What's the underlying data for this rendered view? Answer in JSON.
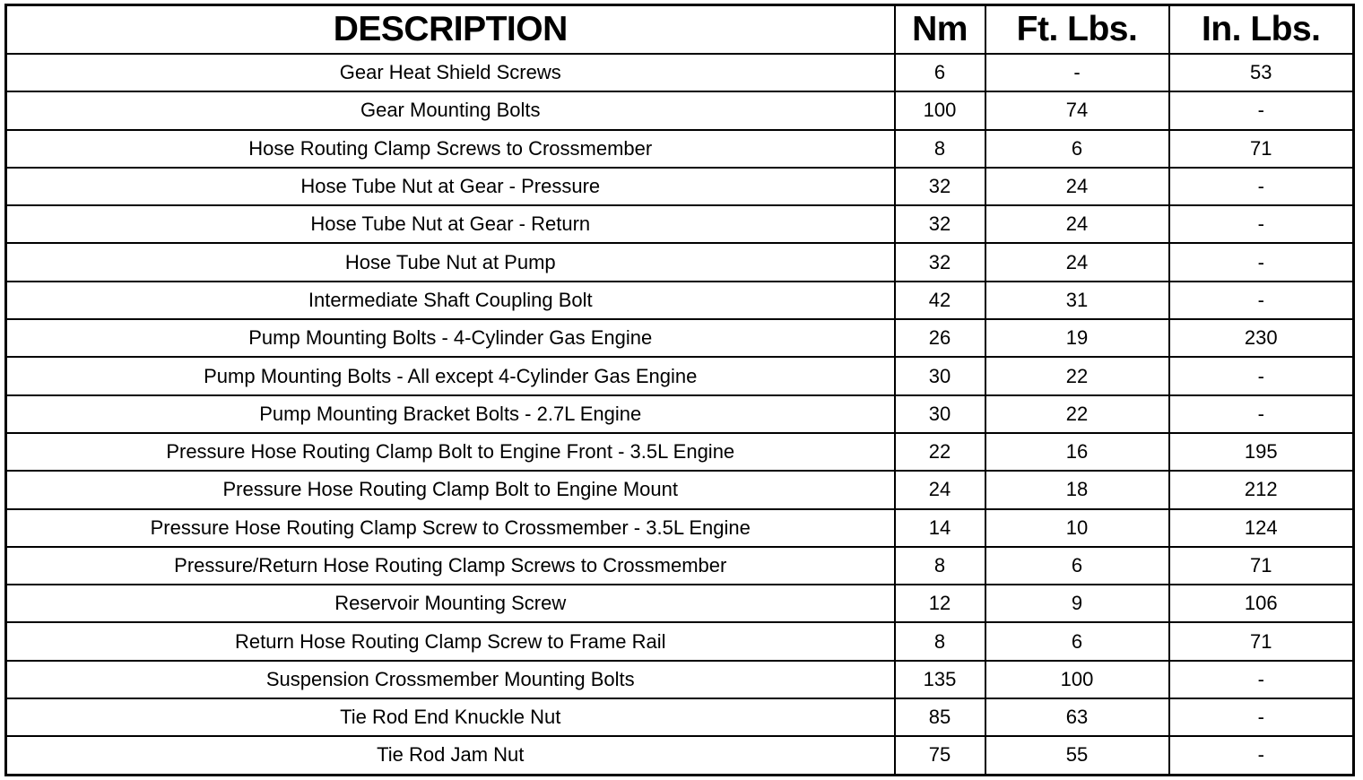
{
  "headers": [
    "DESCRIPTION",
    "Nm",
    "Ft. Lbs.",
    "In. Lbs."
  ],
  "rows": [
    [
      "Gear Heat Shield Screws",
      "6",
      "-",
      "53"
    ],
    [
      "Gear Mounting Bolts",
      "100",
      "74",
      "-"
    ],
    [
      "Hose Routing Clamp Screws to Crossmember",
      "8",
      "6",
      "71"
    ],
    [
      "Hose Tube Nut at Gear - Pressure",
      "32",
      "24",
      "-"
    ],
    [
      "Hose Tube Nut at Gear - Return",
      "32",
      "24",
      "-"
    ],
    [
      "Hose Tube Nut at Pump",
      "32",
      "24",
      "-"
    ],
    [
      "Intermediate Shaft Coupling Bolt",
      "42",
      "31",
      "-"
    ],
    [
      "Pump Mounting Bolts - 4-Cylinder Gas Engine",
      "26",
      "19",
      "230"
    ],
    [
      "Pump Mounting Bolts - All except 4-Cylinder Gas Engine",
      "30",
      "22",
      "-"
    ],
    [
      "Pump Mounting Bracket Bolts - 2.7L Engine",
      "30",
      "22",
      "-"
    ],
    [
      "Pressure Hose Routing Clamp Bolt to Engine Front - 3.5L Engine",
      "22",
      "16",
      "195"
    ],
    [
      "Pressure Hose Routing Clamp Bolt to Engine Mount",
      "24",
      "18",
      "212"
    ],
    [
      "Pressure Hose Routing Clamp Screw to Crossmember - 3.5L Engine",
      "14",
      "10",
      "124"
    ],
    [
      "Pressure/Return Hose Routing Clamp Screws to Crossmember",
      "8",
      "6",
      "71"
    ],
    [
      "Reservoir Mounting Screw",
      "12",
      "9",
      "106"
    ],
    [
      "Return Hose Routing Clamp Screw to Frame Rail",
      "8",
      "6",
      "71"
    ],
    [
      "Suspension Crossmember Mounting Bolts",
      "135",
      "100",
      "-"
    ],
    [
      "Tie Rod End Knuckle Nut",
      "85",
      "63",
      "-"
    ],
    [
      "Tie Rod Jam Nut",
      "75",
      "55",
      "-"
    ]
  ]
}
